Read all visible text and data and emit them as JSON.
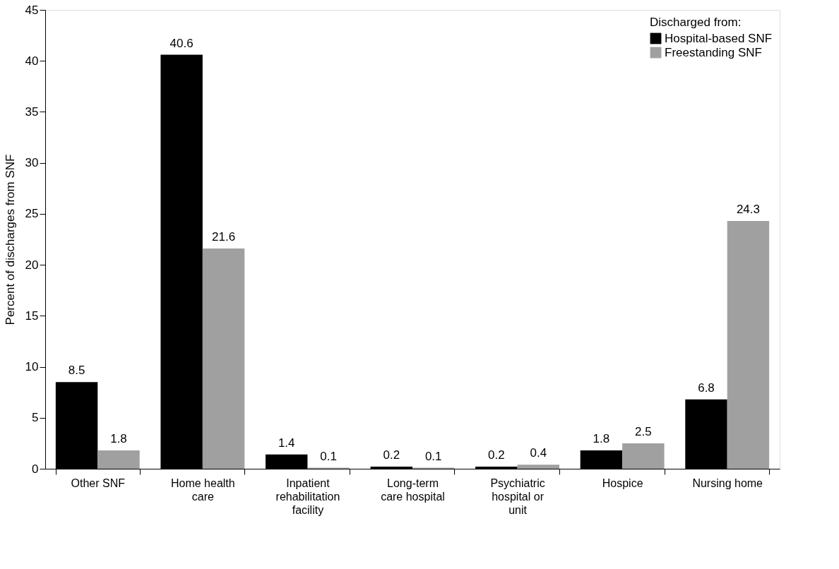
{
  "chart_data": {
    "type": "bar",
    "ylabel": "Percent of discharges from SNF",
    "legend_title": "Discharged from:",
    "categories": [
      "Other SNF",
      "Home health care",
      "Inpatient rehabilitation facility",
      "Long-term care hospital",
      "Psychiatric hospital or unit",
      "Hospice",
      "Nursing home"
    ],
    "series": [
      {
        "name": "Hospital-based SNF",
        "color": "#000000",
        "values": [
          8.5,
          40.6,
          1.4,
          0.2,
          0.2,
          1.8,
          6.8
        ]
      },
      {
        "name": "Freestanding SNF",
        "color": "#a0a0a0",
        "values": [
          1.8,
          21.6,
          0.1,
          0.1,
          0.4,
          2.5,
          24.3
        ]
      }
    ],
    "ylim": [
      0,
      45
    ],
    "yticks": [
      0,
      5,
      10,
      15,
      20,
      25,
      30,
      35,
      40,
      45
    ],
    "grid": false,
    "legend": "top right",
    "data_labels": true
  }
}
